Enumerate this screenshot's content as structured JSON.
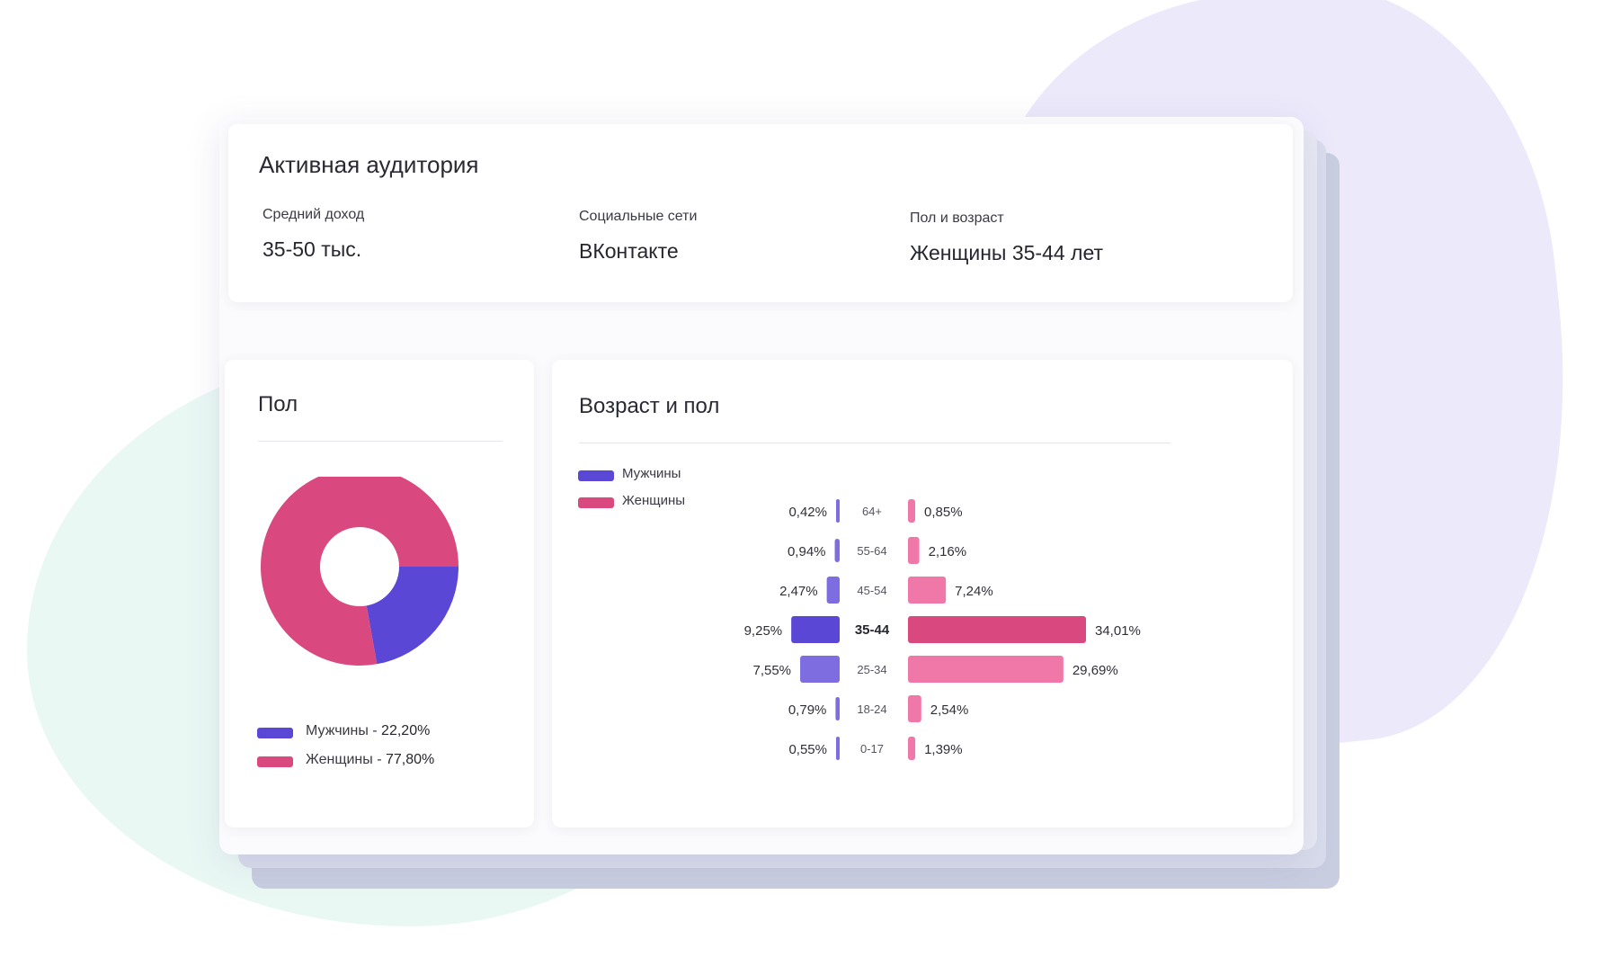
{
  "audience": {
    "title": "Активная аудитория",
    "stats": [
      {
        "label": "Средний доход",
        "value": "35-50 тыс."
      },
      {
        "label": "Социальные сети",
        "value": "ВКонтакте"
      },
      {
        "label": "Пол и возраст",
        "value": "Женщины 35-44 лет"
      }
    ]
  },
  "gender": {
    "title": "Пол",
    "legend": [
      {
        "label": "Мужчины - ",
        "value": "22,20%"
      },
      {
        "label": "Женщины - ",
        "value": "77,80%"
      }
    ]
  },
  "age_gender": {
    "title": "Возраст и пол",
    "legend": [
      "Мужчины",
      "Женщины"
    ]
  },
  "colors": {
    "male": "#5b47d6",
    "male_light": "#7e6de0",
    "female": "#d9487f",
    "female_light": "#f078a8"
  },
  "chart_data": [
    {
      "type": "pie",
      "categories": [
        "Мужчины",
        "Женщины"
      ],
      "values": [
        22.2,
        77.8
      ],
      "colors": [
        "#5b47d6",
        "#d9487f"
      ]
    },
    {
      "type": "bar",
      "categories": [
        "64+",
        "55-64",
        "45-54",
        "35-44",
        "25-34",
        "18-24",
        "0-17"
      ],
      "highlight": "35-44",
      "series": [
        {
          "name": "Мужчины",
          "values": [
            0.42,
            0.94,
            2.47,
            9.25,
            7.55,
            0.79,
            0.55
          ],
          "labels": [
            "0,42%",
            "0,94%",
            "2,47%",
            "9,25%",
            "7,55%",
            "0,79%",
            "0,55%"
          ]
        },
        {
          "name": "Женщины",
          "values": [
            0.85,
            2.16,
            7.24,
            34.01,
            29.69,
            2.54,
            1.39
          ],
          "labels": [
            "0,85%",
            "2,16%",
            "7,24%",
            "34,01%",
            "29,69%",
            "2,54%",
            "1,39%"
          ]
        }
      ]
    }
  ]
}
